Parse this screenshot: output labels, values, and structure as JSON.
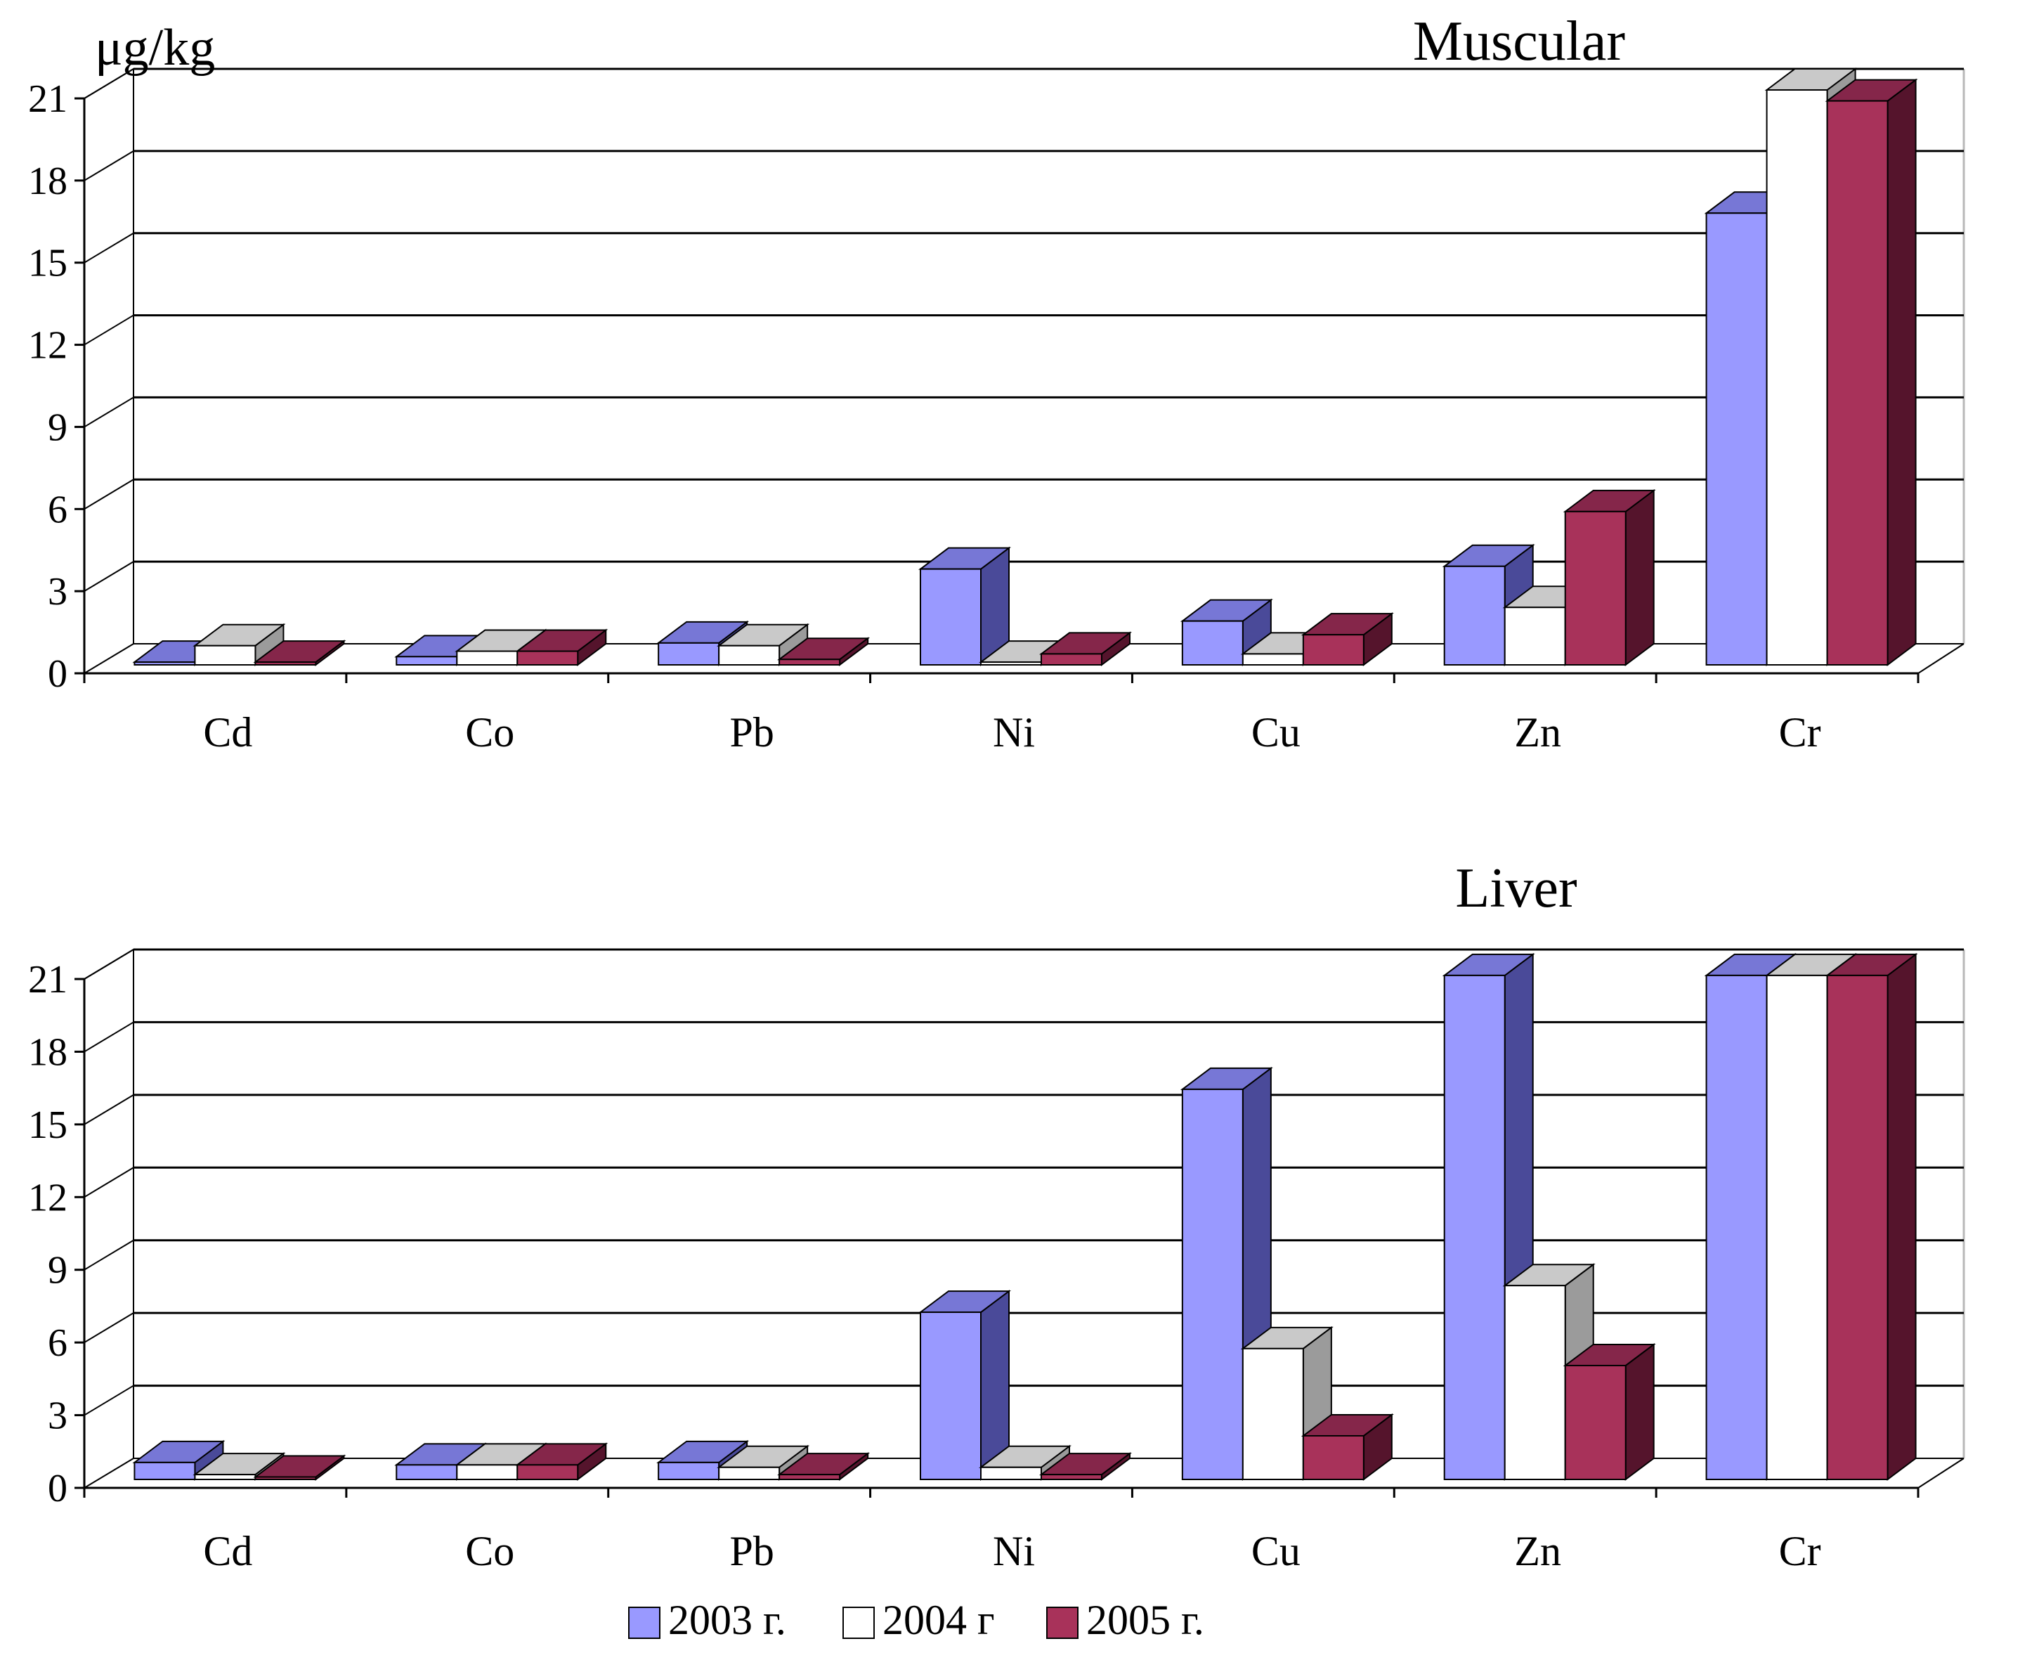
{
  "colors": {
    "s2003": {
      "front": "#9999ff",
      "top": "#7777d6",
      "side": "#4a4a99"
    },
    "s2004": {
      "front": "#ffffff",
      "top": "#c9c9c9",
      "side": "#9b9b9b"
    },
    "s2005": {
      "front": "#a8325a",
      "top": "#85264a",
      "side": "#55142c"
    },
    "grid": "#000000",
    "wall_top": "#b8b8b8"
  },
  "unit_label": "μg/kg",
  "legend": [
    {
      "key": "s2003",
      "label": "2003 г."
    },
    {
      "key": "s2004",
      "label": "2004 г"
    },
    {
      "key": "s2005",
      "label": "2005 г."
    }
  ],
  "chart_data": [
    {
      "type": "bar",
      "title": "Muscular",
      "ylabel": "μg/kg",
      "ylim": [
        0,
        21
      ],
      "yticks": [
        0,
        3,
        6,
        9,
        12,
        15,
        18,
        21
      ],
      "categories": [
        "Cd",
        "Co",
        "Pb",
        "Ni",
        "Cu",
        "Zn",
        "Cr"
      ],
      "series": [
        {
          "name": "2003 г.",
          "key": "s2003",
          "values": [
            0.1,
            0.3,
            0.8,
            3.5,
            1.6,
            3.6,
            16.5
          ]
        },
        {
          "name": "2004 г",
          "key": "s2004",
          "values": [
            0.7,
            0.5,
            0.7,
            0.1,
            0.4,
            2.1,
            21.0
          ]
        },
        {
          "name": "2005 г.",
          "key": "s2005",
          "values": [
            0.1,
            0.5,
            0.2,
            0.4,
            1.1,
            5.6,
            20.6
          ]
        }
      ],
      "grid": true
    },
    {
      "type": "bar",
      "title": "Liver",
      "ylabel": "",
      "ylim": [
        0,
        21
      ],
      "yticks": [
        0,
        3,
        6,
        9,
        12,
        15,
        18,
        21
      ],
      "categories": [
        "Cd",
        "Co",
        "Pb",
        "Ni",
        "Cu",
        "Zn",
        "Cr"
      ],
      "series": [
        {
          "name": "2003 г.",
          "key": "s2003",
          "values": [
            0.7,
            0.6,
            0.7,
            6.9,
            16.1,
            20.8,
            20.8
          ]
        },
        {
          "name": "2004 г",
          "key": "s2004",
          "values": [
            0.2,
            0.6,
            0.5,
            0.5,
            5.4,
            8.0,
            20.8
          ]
        },
        {
          "name": "2005 г.",
          "key": "s2005",
          "values": [
            0.1,
            0.6,
            0.2,
            0.2,
            1.8,
            4.7,
            20.8
          ]
        }
      ],
      "grid": true
    }
  ]
}
